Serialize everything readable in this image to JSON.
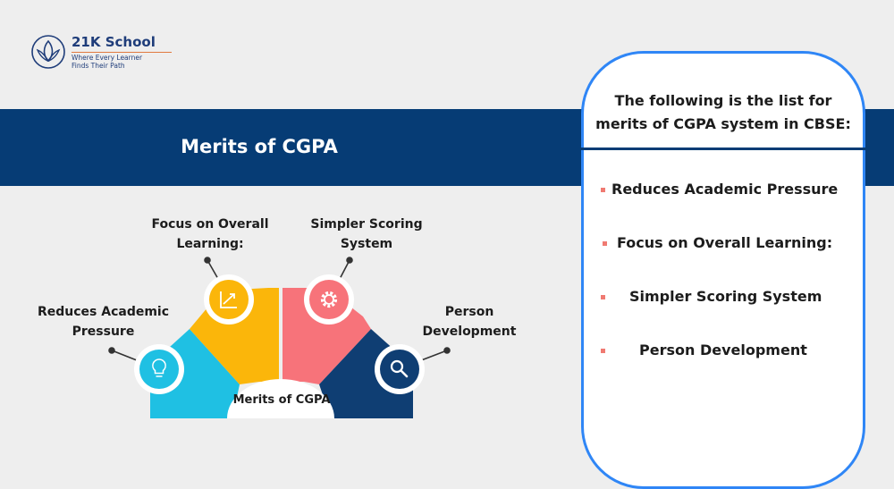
{
  "logo": {
    "name": "21K School",
    "tagline_1": "Where Every Learner",
    "tagline_2": "Finds Their Path"
  },
  "banner": {
    "title": "Merits of CGPA"
  },
  "diagram": {
    "center_label": "Merits of CGPA",
    "segments": [
      {
        "label_1": "Reduces Academic",
        "label_2": "Pressure",
        "color": "#1fc0e3",
        "icon": "lightbulb-icon"
      },
      {
        "label_1": "Focus on Overall",
        "label_2": "Learning:",
        "color": "#fbb60a",
        "icon": "chart-up-icon"
      },
      {
        "label_1": "Simpler Scoring",
        "label_2": "System",
        "color": "#f7737a",
        "icon": "gear-icon"
      },
      {
        "label_1": "Person",
        "label_2": "Development",
        "color": "#0f3e73",
        "icon": "search-icon"
      }
    ]
  },
  "panel": {
    "heading_1": "The following is the list for",
    "heading_2": "merits of CGPA system in CBSE:",
    "items": [
      "Reduces Academic Pressure",
      "Focus on Overall Learning:",
      "Simpler Scoring System",
      "Person Development"
    ],
    "border_color": "#2f86f6"
  }
}
